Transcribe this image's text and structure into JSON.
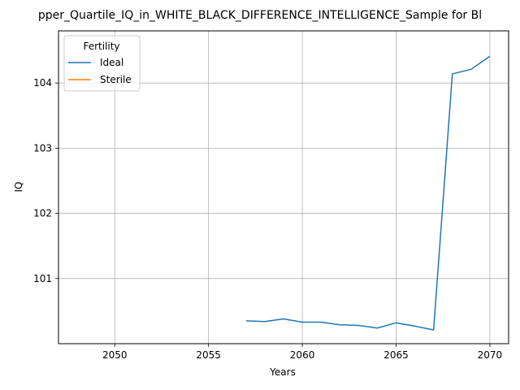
{
  "chart_data": {
    "type": "line",
    "title": "pper_Quartile_IQ_in_WHITE_BLACK_DIFFERENCE_INTELLIGENCE_Sample for Bl",
    "xlabel": "Years",
    "ylabel": "IQ",
    "xlim": [
      2047,
      2071
    ],
    "ylim": [
      100.0,
      104.8
    ],
    "xticks": [
      2050,
      2055,
      2060,
      2065,
      2070
    ],
    "yticks": [
      101,
      102,
      103,
      104
    ],
    "grid": true,
    "legend": {
      "title": "Fertility",
      "placement": "top-left"
    },
    "series": [
      {
        "name": "Ideal",
        "color": "#1f77b4",
        "x": [
          2057,
          2058,
          2059,
          2060,
          2061,
          2062,
          2063,
          2064,
          2065,
          2066,
          2067,
          2068,
          2069,
          2070
        ],
        "y": [
          100.35,
          100.34,
          100.38,
          100.33,
          100.33,
          100.29,
          100.28,
          100.24,
          100.32,
          100.27,
          100.21,
          104.14,
          104.21,
          104.41
        ]
      },
      {
        "name": "Sterile",
        "color": "#ff7f0e",
        "x": [],
        "y": []
      }
    ]
  }
}
